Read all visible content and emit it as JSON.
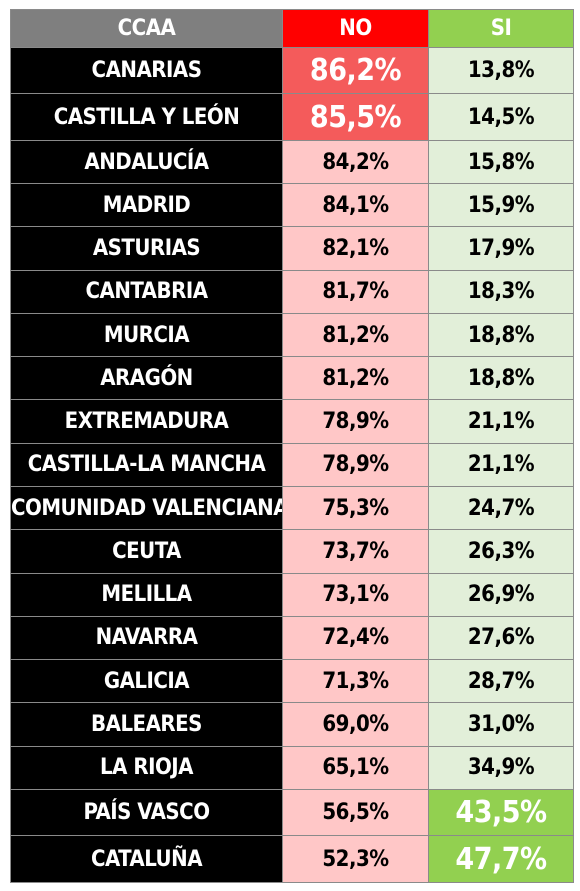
{
  "chart_data": {
    "type": "table",
    "columns": [
      "CCAA",
      "NO",
      "SI"
    ],
    "rows": [
      {
        "region": "CANARIAS",
        "no": "86,2%",
        "si": "13,8%",
        "highlight": "no"
      },
      {
        "region": "CASTILLA Y LEÓN",
        "no": "85,5%",
        "si": "14,5%",
        "highlight": "no"
      },
      {
        "region": "ANDALUCÍA",
        "no": "84,2%",
        "si": "15,8%",
        "highlight": ""
      },
      {
        "region": "MADRID",
        "no": "84,1%",
        "si": "15,9%",
        "highlight": ""
      },
      {
        "region": "ASTURIAS",
        "no": "82,1%",
        "si": "17,9%",
        "highlight": ""
      },
      {
        "region": "CANTABRIA",
        "no": "81,7%",
        "si": "18,3%",
        "highlight": ""
      },
      {
        "region": "MURCIA",
        "no": "81,2%",
        "si": "18,8%",
        "highlight": ""
      },
      {
        "region": "ARAGÓN",
        "no": "81,2%",
        "si": "18,8%",
        "highlight": ""
      },
      {
        "region": "EXTREMADURA",
        "no": "78,9%",
        "si": "21,1%",
        "highlight": ""
      },
      {
        "region": "CASTILLA-LA MANCHA",
        "no": "78,9%",
        "si": "21,1%",
        "highlight": ""
      },
      {
        "region": "COMUNIDAD VALENCIANA",
        "no": "75,3%",
        "si": "24,7%",
        "highlight": ""
      },
      {
        "region": "CEUTA",
        "no": "73,7%",
        "si": "26,3%",
        "highlight": ""
      },
      {
        "region": "MELILLA",
        "no": "73,1%",
        "si": "26,9%",
        "highlight": ""
      },
      {
        "region": "NAVARRA",
        "no": "72,4%",
        "si": "27,6%",
        "highlight": ""
      },
      {
        "region": "GALICIA",
        "no": "71,3%",
        "si": "28,7%",
        "highlight": ""
      },
      {
        "region": "BALEARES",
        "no": "69,0%",
        "si": "31,0%",
        "highlight": ""
      },
      {
        "region": "LA RIOJA",
        "no": "65,1%",
        "si": "34,9%",
        "highlight": ""
      },
      {
        "region": "PAÍS VASCO",
        "no": "56,5%",
        "si": "43,5%",
        "highlight": "si"
      },
      {
        "region": "CATALUÑA",
        "no": "52,3%",
        "si": "47,7%",
        "highlight": "si"
      }
    ]
  }
}
